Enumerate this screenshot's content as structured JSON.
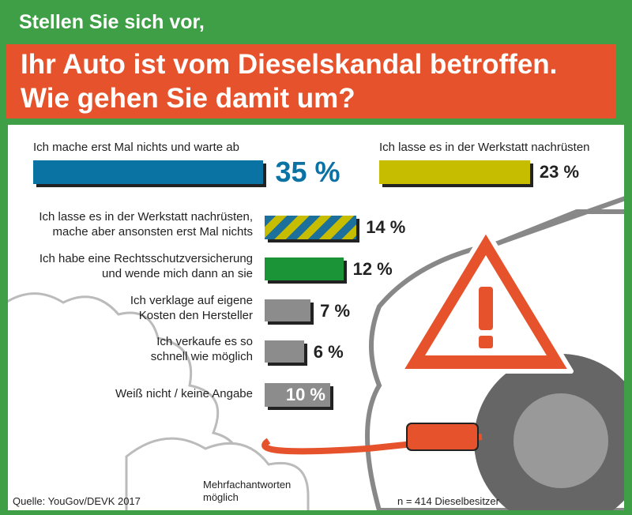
{
  "title": "Stellen Sie sich vor,",
  "subtitle": [
    "Ihr Auto ist vom Dieselskandal betroffen.",
    "Wie gehen Sie damit um?"
  ],
  "chart_data": {
    "type": "bar",
    "categories": [
      "Ich mache erst Mal nichts und warte ab",
      "Ich lasse es in der Werkstatt nachrüsten",
      "Ich lasse es in der Werkstatt nachrüsten,\nmache aber ansonsten erst Mal nichts",
      "Ich habe eine Rechtsschutzversicherung\nund wende mich dann an sie",
      "Ich verklage auf eigene\nKosten den Hersteller",
      "Ich verkaufe es so\nschnell wie möglich",
      "Weiß nicht / keine Angabe"
    ],
    "values": [
      35,
      23,
      14,
      12,
      7,
      6,
      10
    ],
    "value_labels": [
      "35 %",
      "23 %",
      "14 %",
      "12 %",
      "7 %",
      "6 %",
      "10 %"
    ],
    "colors": [
      "#0b72a4",
      "#c6bd00",
      [
        "#1d6f9c",
        "#c6bd00"
      ],
      "#1a9437",
      "#8c8c8c",
      "#8c8c8c",
      "#8c8c8c"
    ]
  },
  "footer": {
    "source": "Quelle: YouGov/DEVK 2017",
    "note": "Mehrfachantworten\nmöglich",
    "sample": "n = 414 Dieselbesitzer"
  }
}
